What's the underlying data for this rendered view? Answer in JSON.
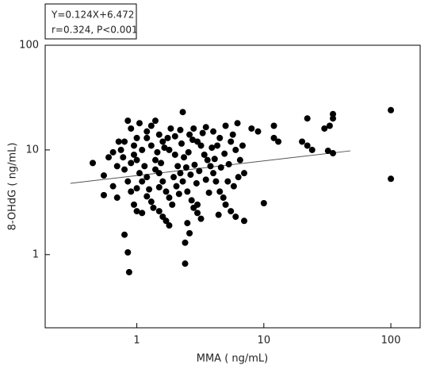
{
  "chart_data": {
    "type": "scatter",
    "annotation": [
      "Y=0.124X+6.472",
      "r=0.324, P<0.001"
    ],
    "xlabel": "MMA ( ng/mL)",
    "ylabel": "8-OHdG ( ng/mL)",
    "xscale": "log",
    "yscale": "log",
    "xlim": [
      0.19,
      170
    ],
    "ylim": [
      0.2,
      100
    ],
    "xticks": [
      1,
      10,
      100
    ],
    "yticks": [
      1,
      10,
      100
    ],
    "color": "#000000",
    "x": [
      0.8,
      0.85,
      0.87,
      2.4,
      2.4,
      2.6,
      2.3,
      100,
      100,
      35,
      35,
      33,
      30,
      32,
      35,
      22,
      22,
      24,
      20,
      10,
      12,
      12,
      13,
      7,
      0.45,
      0.55,
      0.55,
      0.6,
      0.65,
      0.7,
      0.75,
      0.8,
      0.85,
      0.9,
      0.95,
      1.0,
      1.05,
      1.1,
      0.9,
      0.95,
      1.0,
      1.1,
      1.2,
      1.3,
      1.4,
      1.5,
      1.6,
      1.7,
      1.8,
      1.9,
      1.5,
      1.6,
      1.7,
      1.2,
      1.3,
      1.4,
      1.5,
      1.6,
      1.8,
      2.0,
      2.1,
      2.2,
      2.3,
      2.5,
      2.7,
      2.8,
      3.0,
      3.2,
      2.6,
      2.8,
      3.0,
      3.2,
      3.4,
      3.6,
      3.8,
      4.0,
      4.2,
      4.5,
      4.8,
      5.0,
      5.5,
      6.0,
      4.0,
      4.5,
      5.0,
      5.5,
      6.0,
      6.5,
      7.0,
      5.2,
      5.8,
      6.2,
      6.8,
      0.8,
      0.85,
      0.9,
      0.95,
      1.0,
      1.05,
      1.1,
      1.15,
      1.2,
      1.25,
      1.3,
      1.35,
      1.4,
      1.45,
      1.55,
      1.65,
      1.75,
      1.85,
      1.95,
      2.05,
      2.15,
      2.25,
      2.35,
      2.45,
      2.55,
      2.65,
      2.75,
      2.85,
      2.95,
      3.1,
      3.3,
      3.5,
      3.7,
      3.9,
      4.1,
      4.3,
      4.6,
      4.9,
      5.3,
      5.7,
      6.3,
      0.65,
      0.7,
      0.72,
      0.78,
      8,
      9,
      1.0,
      1.2,
      1.5,
      2.0,
      2.2,
      3.5,
      4.4,
      2.5,
      1.8,
      3.0
    ],
    "values": [
      1.55,
      1.05,
      0.68,
      0.82,
      1.3,
      1.6,
      23,
      24,
      5.3,
      22,
      20,
      17,
      16,
      9.8,
      9.3,
      20,
      11,
      10,
      12,
      3.1,
      17,
      13,
      12,
      2.1,
      7.5,
      3.7,
      5.7,
      8.5,
      4.5,
      3.5,
      10,
      12,
      19,
      16,
      9,
      8,
      6,
      5,
      4,
      3,
      2.6,
      2.5,
      13,
      11,
      8,
      6,
      5,
      4,
      3.5,
      3,
      2.6,
      2.3,
      2.1,
      15,
      17,
      19,
      14,
      12,
      10,
      9,
      7,
      6,
      5,
      4,
      3.3,
      2.8,
      2.5,
      2.2,
      14,
      16,
      12,
      11,
      9,
      8,
      7,
      6,
      5,
      4,
      3.5,
      3,
      2.6,
      2.3,
      15,
      13,
      17,
      12,
      10,
      8,
      6,
      5,
      4.5,
      18,
      11,
      6.5,
      5,
      7.5,
      11,
      13,
      18,
      10,
      7,
      5.5,
      4.2,
      3.2,
      2.8,
      6.5,
      9.5,
      7.5,
      10.5,
      13,
      16,
      5.5,
      4.5,
      3.8,
      11.5,
      8.5,
      6.8,
      9.5,
      5.8,
      12.5,
      7.2,
      4.8,
      6.3,
      14.5,
      5.2,
      3.9,
      10.5,
      8.2,
      11,
      6.8,
      9.2,
      7.3,
      14,
      5.5,
      9.5,
      7,
      12,
      8.5,
      16,
      15,
      4.3,
      3.6,
      4.4,
      13.5,
      15.5,
      16.5,
      2.4,
      2.0,
      1.9,
      3.0
    ],
    "fit_line": {
      "x": [
        0.3,
        48
      ],
      "y": [
        4.8,
        9.8
      ],
      "color": "#555555"
    }
  }
}
